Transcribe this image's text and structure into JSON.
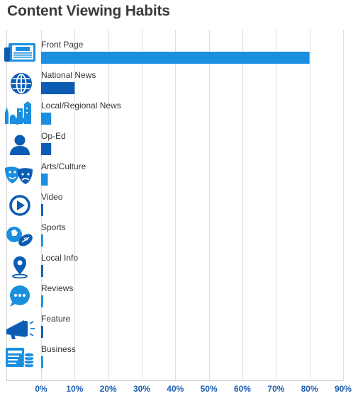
{
  "chart_data": {
    "type": "bar",
    "title": "Content Viewing Habits",
    "categories": [
      "Front Page",
      "National News",
      "Local/Regional News",
      "Op-Ed",
      "Arts/Culture",
      "Video",
      "Sports",
      "Local Info",
      "Reviews",
      "Feature",
      "Business"
    ],
    "icons": [
      "newspaper-icon",
      "globe-icon",
      "city-icon",
      "person-icon",
      "theater-masks-icon",
      "play-icon",
      "sports-balls-icon",
      "location-pin-icon",
      "chat-bubble-icon",
      "megaphone-icon",
      "business-icon"
    ],
    "values": [
      80,
      10,
      3,
      3,
      2,
      0.6,
      0.6,
      0.6,
      0.6,
      0.6,
      0.6
    ],
    "bar_colors": [
      "#1a8fe0",
      "#0b5cb3",
      "#1a8fe0",
      "#0b5cb3",
      "#1a8fe0",
      "#0b5cb3",
      "#1a8fe0",
      "#0b5cb3",
      "#1a8fe0",
      "#0b5cb3",
      "#1a8fe0"
    ],
    "xlim": [
      0,
      90
    ],
    "xticks": [
      0,
      10,
      20,
      30,
      40,
      50,
      60,
      70,
      80,
      90
    ],
    "tick_labels": [
      "0%",
      "10%",
      "20%",
      "30%",
      "40%",
      "50%",
      "60%",
      "70%",
      "80%",
      "90%"
    ],
    "xlabel": "",
    "ylabel": "",
    "grid": true,
    "legend": "none"
  },
  "colors": {
    "icon_dark": "#0b5cb3",
    "icon_light": "#1a8fe0",
    "tick_text": "#1f5fb2",
    "grid": "#dddddd"
  }
}
